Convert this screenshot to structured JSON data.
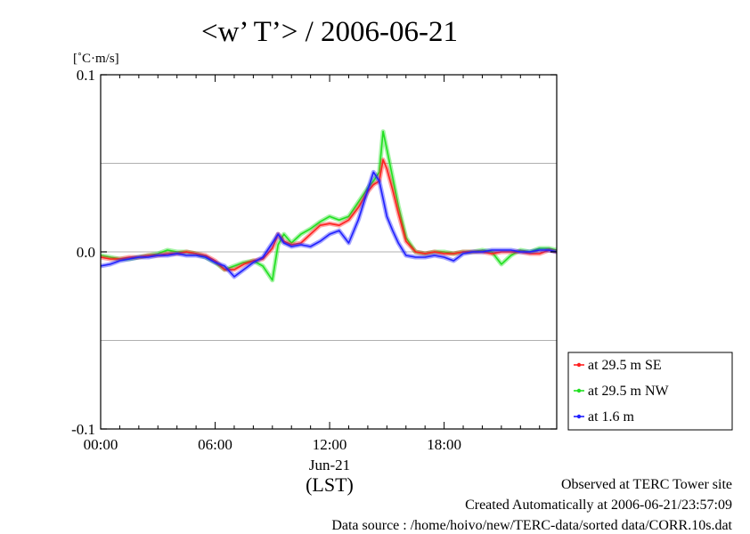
{
  "chart_data": {
    "type": "line",
    "title": "<w’ T’> / 2006-06-21",
    "ylabel": "[˚C·m/s]",
    "xlabel": "(LST)",
    "x_date_label": "Jun-21",
    "xlim_hours": [
      0,
      23.9
    ],
    "ylim": [
      -0.1,
      0.1
    ],
    "x_ticks": [
      "00:00",
      "06:00",
      "12:00",
      "18:00"
    ],
    "y_ticks": [
      "0.1",
      "0.0",
      "-0.1"
    ],
    "grid_y": [
      -0.05,
      0.0,
      0.05
    ],
    "legend_position": "right, bottom",
    "series": [
      {
        "name": "at 29.5 m SE",
        "color": "#ff2020",
        "x": [
          0,
          0.5,
          1,
          1.5,
          2,
          2.5,
          3,
          3.5,
          4,
          4.5,
          5,
          5.5,
          6,
          6.5,
          7,
          7.5,
          8,
          8.5,
          9,
          9.3,
          9.6,
          10,
          10.5,
          11,
          11.5,
          12,
          12.5,
          13,
          13.5,
          14,
          14.3,
          14.6,
          14.8,
          15,
          15.3,
          15.6,
          16,
          16.5,
          17,
          17.5,
          18,
          18.5,
          19,
          19.5,
          20,
          20.5,
          21,
          21.5,
          22,
          22.5,
          23,
          23.5,
          23.9
        ],
        "y": [
          -0.003,
          -0.004,
          -0.004,
          -0.003,
          -0.003,
          -0.002,
          -0.002,
          -0.001,
          -0.001,
          0.0,
          -0.001,
          -0.002,
          -0.005,
          -0.01,
          -0.01,
          -0.007,
          -0.005,
          -0.004,
          0.002,
          0.01,
          0.006,
          0.004,
          0.005,
          0.01,
          0.015,
          0.016,
          0.015,
          0.018,
          0.025,
          0.034,
          0.038,
          0.04,
          0.052,
          0.047,
          0.035,
          0.022,
          0.006,
          0.0,
          -0.001,
          0.0,
          -0.001,
          -0.001,
          0.0,
          0.0,
          0.0,
          -0.001,
          0.0,
          0.0,
          0.0,
          -0.001,
          -0.001,
          0.001,
          0.0
        ]
      },
      {
        "name": "at 29.5 m NW",
        "color": "#20e020",
        "x": [
          0,
          0.5,
          1,
          1.5,
          2,
          2.5,
          3,
          3.5,
          4,
          4.5,
          5,
          5.5,
          6,
          6.5,
          7,
          7.5,
          8,
          8.5,
          9,
          9.3,
          9.6,
          10,
          10.5,
          11,
          11.5,
          12,
          12.5,
          13,
          13.5,
          14,
          14.3,
          14.6,
          14.8,
          15,
          15.3,
          15.6,
          16,
          16.5,
          17,
          17.5,
          18,
          18.5,
          19,
          19.5,
          20,
          20.5,
          21,
          21.5,
          22,
          22.5,
          23,
          23.5,
          23.9
        ],
        "y": [
          -0.002,
          -0.003,
          -0.004,
          -0.004,
          -0.003,
          -0.002,
          -0.001,
          0.001,
          0.0,
          0.0,
          -0.001,
          -0.003,
          -0.006,
          -0.01,
          -0.008,
          -0.006,
          -0.005,
          -0.008,
          -0.016,
          0.004,
          0.01,
          0.005,
          0.01,
          0.013,
          0.017,
          0.02,
          0.018,
          0.02,
          0.028,
          0.036,
          0.04,
          0.045,
          0.068,
          0.058,
          0.042,
          0.026,
          0.008,
          0.0,
          -0.001,
          0.0,
          0.0,
          -0.001,
          0.0,
          0.0,
          0.001,
          0.0,
          -0.007,
          -0.002,
          0.001,
          0.0,
          0.002,
          0.002,
          0.001
        ]
      },
      {
        "name": "at 1.6 m",
        "color": "#2020ff",
        "x": [
          0,
          0.5,
          1,
          1.5,
          2,
          2.5,
          3,
          3.5,
          4,
          4.5,
          5,
          5.5,
          6,
          6.5,
          7,
          7.5,
          8,
          8.5,
          9,
          9.3,
          9.6,
          10,
          10.5,
          11,
          11.5,
          12,
          12.5,
          13,
          13.5,
          14,
          14.3,
          14.6,
          14.8,
          15,
          15.3,
          15.6,
          16,
          16.5,
          17,
          17.5,
          18,
          18.5,
          19,
          19.5,
          20,
          20.5,
          21,
          21.5,
          22,
          22.5,
          23,
          23.5,
          23.9
        ],
        "y": [
          -0.008,
          -0.007,
          -0.005,
          -0.004,
          -0.003,
          -0.003,
          -0.002,
          -0.002,
          -0.001,
          -0.002,
          -0.002,
          -0.003,
          -0.006,
          -0.008,
          -0.014,
          -0.01,
          -0.006,
          -0.003,
          0.005,
          0.01,
          0.005,
          0.003,
          0.004,
          0.003,
          0.006,
          0.01,
          0.012,
          0.005,
          0.018,
          0.035,
          0.045,
          0.04,
          0.03,
          0.02,
          0.012,
          0.005,
          -0.002,
          -0.003,
          -0.003,
          -0.002,
          -0.003,
          -0.005,
          -0.001,
          0.0,
          0.0,
          0.001,
          0.001,
          0.001,
          0.0,
          0.0,
          0.001,
          0.001,
          0.0
        ]
      }
    ]
  },
  "footer": {
    "line1": "Observed at TERC Tower site",
    "line2": "Created Automatically at 2006-06-21/23:57:09",
    "line3": "Data source : /home/hoivo/new/TERC-data/sorted  data/CORR.10s.dat"
  }
}
